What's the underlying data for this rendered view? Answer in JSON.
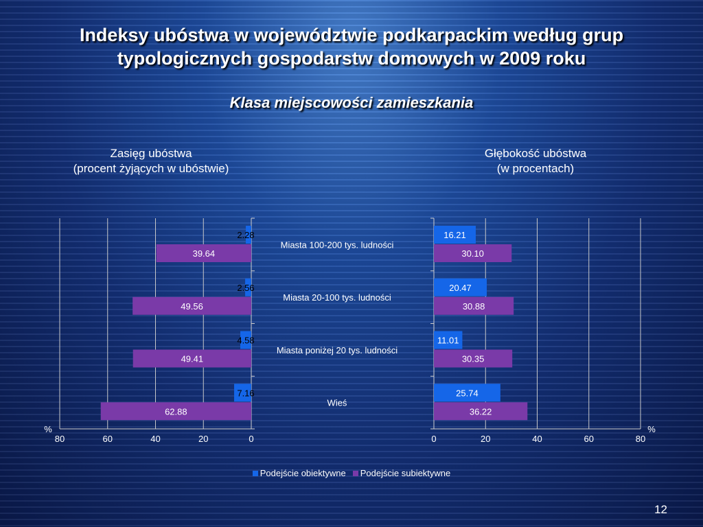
{
  "slide": {
    "title": "Indeksy ubóstwa w województwie podkarpackim według grup typologicznych gospodarstw domowych w 2009 roku",
    "subtitle": "Klasa miejscowości zamieszkania",
    "page_number": "12"
  },
  "panels": {
    "left_title_line1": "Zasięg ubóstwa",
    "left_title_line2": "(procent żyjących w ubóstwie)",
    "right_title_line1": "Głębokość ubóstwa",
    "right_title_line2": "(w procentach)"
  },
  "colors": {
    "objective": "#1566e8",
    "subjective": "#7a3aa8"
  },
  "chart_data": [
    {
      "type": "bar",
      "orientation": "horizontal",
      "direction": "reversed",
      "categories": [
        "Miasta 100-200 tys. ludności",
        "Miasta 20-100 tys. ludności",
        "Miasta poniżej 20 tys. ludności",
        "Wieś"
      ],
      "series": [
        {
          "name": "Podejście obiektywne",
          "values": [
            2.28,
            2.56,
            4.58,
            7.16
          ],
          "labels": [
            "2.28",
            "2.56",
            "4.58",
            "7.16"
          ]
        },
        {
          "name": "Podejście subiektywne",
          "values": [
            39.64,
            49.56,
            49.41,
            62.88
          ],
          "labels": [
            "39.64",
            "49.56",
            "49.41",
            "62.88"
          ]
        }
      ],
      "xlim": [
        0,
        80
      ],
      "x_ticks": [
        "80",
        "60",
        "40",
        "20",
        "0"
      ],
      "x_unit": "%",
      "grid": true
    },
    {
      "type": "bar",
      "orientation": "horizontal",
      "categories": [
        "Miasta 100-200 tys. ludności",
        "Miasta 20-100 tys. ludności",
        "Miasta poniżej 20 tys. ludności",
        "Wieś"
      ],
      "series": [
        {
          "name": "Podejście obiektywne",
          "values": [
            16.21,
            20.47,
            11.01,
            25.74
          ],
          "labels": [
            "16.21",
            "20.47",
            "11.01",
            "25.74"
          ]
        },
        {
          "name": "Podejście subiektywne",
          "values": [
            30.1,
            30.88,
            30.35,
            36.22
          ],
          "labels": [
            "30.10",
            "30.88",
            "30.35",
            "36.22"
          ]
        }
      ],
      "xlim": [
        0,
        80
      ],
      "x_ticks": [
        "0",
        "20",
        "40",
        "60",
        "80"
      ],
      "x_unit": "%",
      "grid": true
    }
  ],
  "legend": {
    "items": [
      "Podejście obiektywne",
      "Podejście subiektywne"
    ],
    "placement": "bottom"
  }
}
